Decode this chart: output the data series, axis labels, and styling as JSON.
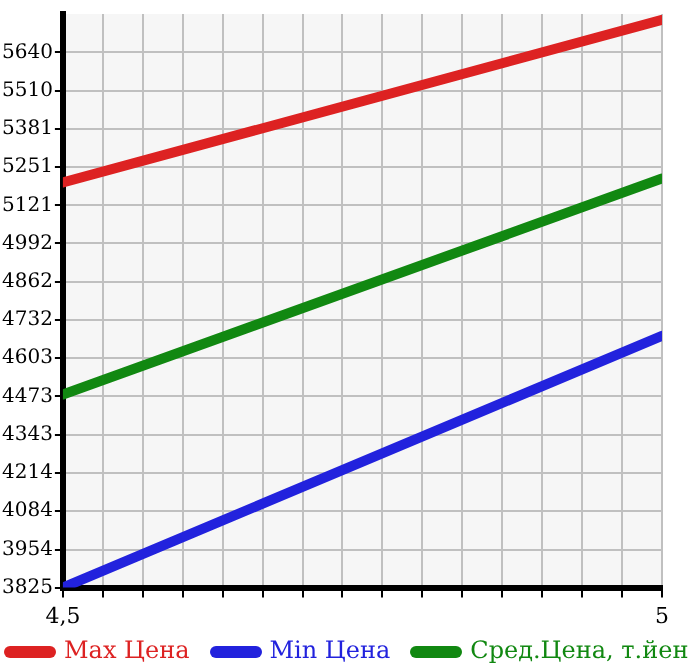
{
  "chart_data": {
    "type": "line",
    "x": [
      4.5,
      5
    ],
    "xlim": [
      4.5,
      5
    ],
    "xticks": [
      {
        "value": 4.5,
        "label": "4,5"
      },
      {
        "value": 4.5333,
        "label": null
      },
      {
        "value": 4.5667,
        "label": null
      },
      {
        "value": 4.6,
        "label": null
      },
      {
        "value": 4.6333,
        "label": null
      },
      {
        "value": 4.6667,
        "label": null
      },
      {
        "value": 4.7,
        "label": null
      },
      {
        "value": 4.7333,
        "label": null
      },
      {
        "value": 4.7667,
        "label": null
      },
      {
        "value": 4.8,
        "label": null
      },
      {
        "value": 4.8333,
        "label": null
      },
      {
        "value": 4.8667,
        "label": null
      },
      {
        "value": 4.9,
        "label": null
      },
      {
        "value": 4.9333,
        "label": null
      },
      {
        "value": 4.9667,
        "label": null
      },
      {
        "value": 5,
        "label": "5"
      }
    ],
    "ylim": [
      3825,
      5770
    ],
    "yticks": [
      3825,
      3954,
      4084,
      4214,
      4343,
      4473,
      4603,
      4732,
      4862,
      4992,
      5121,
      5251,
      5381,
      5510,
      5640
    ],
    "series": [
      {
        "name": "Max Цена",
        "color": "#dd2222",
        "values": [
          5199,
          5750
        ]
      },
      {
        "name": "Min Цена",
        "color": "#2222dd",
        "values": [
          3825,
          4679
        ]
      },
      {
        "name": "Сред.Цена, т.йен",
        "color": "#118811",
        "values": [
          4480,
          5212
        ]
      }
    ],
    "grid": true,
    "legend": "bottom",
    "marker": "none",
    "line_style": "solid"
  }
}
